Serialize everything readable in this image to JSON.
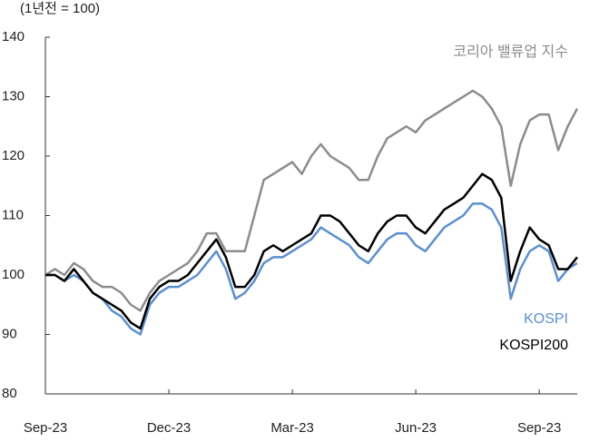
{
  "chart_data": {
    "type": "line",
    "ylabel": "(1년전 = 100)",
    "x": [
      0,
      1,
      2,
      3,
      4,
      5,
      6,
      7,
      8,
      9,
      10,
      11,
      12,
      13,
      14,
      15,
      16,
      17,
      18,
      19,
      20,
      21,
      22,
      23,
      24,
      25,
      26,
      27,
      28,
      29,
      30,
      31,
      32,
      33,
      34,
      35,
      36,
      37,
      38,
      39,
      40,
      41,
      42,
      43,
      44,
      45,
      46,
      47,
      48,
      49,
      50,
      51,
      52,
      53,
      54,
      55,
      56
    ],
    "xlim": [
      0,
      56
    ],
    "xticks": [
      {
        "value": 0,
        "label": "Sep-23"
      },
      {
        "value": 13,
        "label": "Dec-23"
      },
      {
        "value": 26,
        "label": "Mar-23"
      },
      {
        "value": 39,
        "label": "Jun-23"
      },
      {
        "value": 52,
        "label": "Sep-23"
      }
    ],
    "ylim": [
      80,
      140
    ],
    "yticks": [
      80,
      90,
      100,
      110,
      120,
      130,
      140
    ],
    "grid": false,
    "series": [
      {
        "name": "코리아 밸류업 지수",
        "color": "#8c8c8c",
        "values": [
          100,
          101,
          100,
          102,
          101,
          99,
          98,
          98,
          97,
          95,
          94,
          97,
          99,
          100,
          101,
          102,
          104,
          107,
          107,
          104,
          104,
          104,
          110,
          116,
          117,
          118,
          119,
          117,
          120,
          122,
          120,
          119,
          118,
          116,
          116,
          120,
          123,
          124,
          125,
          124,
          126,
          127,
          128,
          129,
          130,
          131,
          130,
          128,
          125,
          115,
          122,
          126,
          127,
          127,
          121,
          125,
          128
        ]
      },
      {
        "name": "KOSPI",
        "color": "#5b8fd1",
        "values": [
          100,
          100,
          99,
          100,
          99,
          97,
          96,
          94,
          93,
          91,
          90,
          95,
          97,
          98,
          98,
          99,
          100,
          102,
          104,
          101,
          96,
          97,
          99,
          102,
          103,
          103,
          104,
          105,
          106,
          108,
          107,
          106,
          105,
          103,
          102,
          104,
          106,
          107,
          107,
          105,
          104,
          106,
          108,
          109,
          110,
          112,
          112,
          111,
          108,
          96,
          101,
          104,
          105,
          104,
          99,
          101,
          102
        ]
      },
      {
        "name": "KOSPI200",
        "color": "#000000",
        "values": [
          100,
          100,
          99,
          101,
          99,
          97,
          96,
          95,
          94,
          92,
          91,
          96,
          98,
          99,
          99,
          100,
          102,
          104,
          106,
          103,
          98,
          98,
          100,
          104,
          105,
          104,
          105,
          106,
          107,
          110,
          110,
          109,
          107,
          105,
          104,
          107,
          109,
          110,
          110,
          108,
          107,
          109,
          111,
          112,
          113,
          115,
          117,
          116,
          113,
          99,
          104,
          108,
          106,
          105,
          101,
          101,
          103
        ]
      }
    ]
  }
}
